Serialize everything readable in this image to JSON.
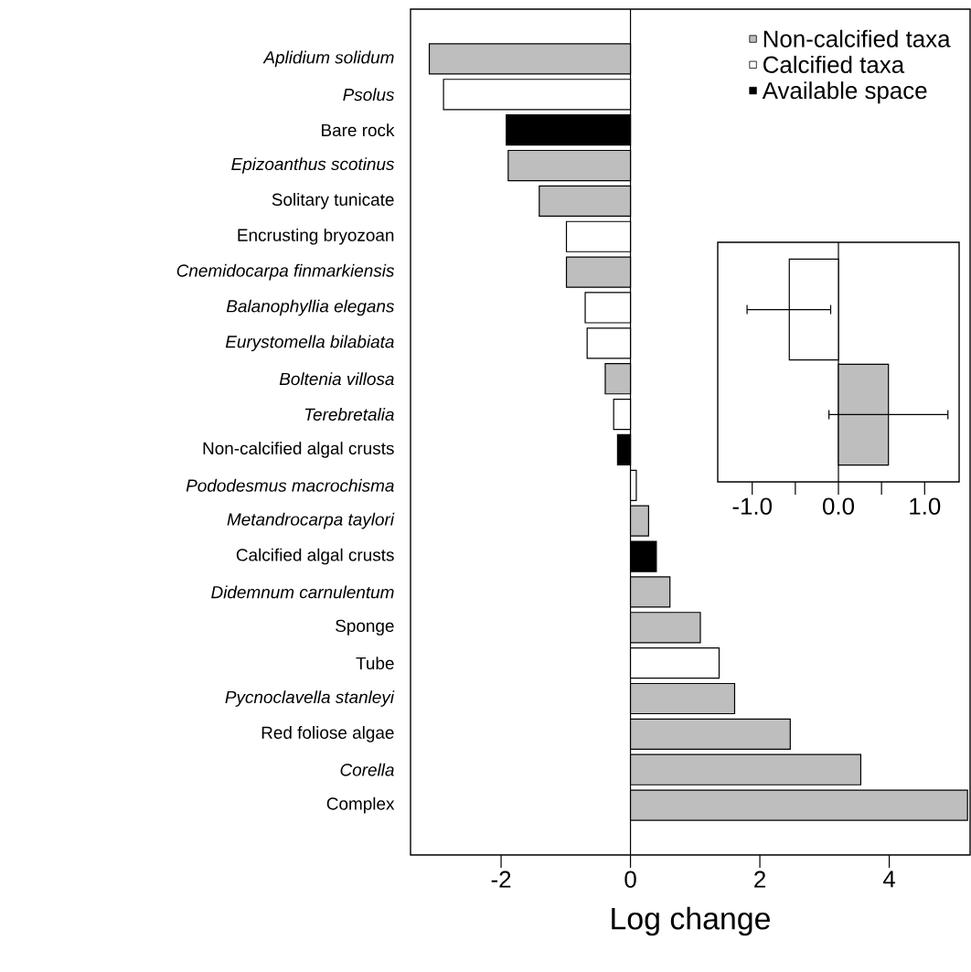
{
  "chart_data": [
    {
      "type": "bar",
      "orientation": "horizontal",
      "xlabel": "Log change",
      "categories": [
        "*Aplidium solidum*",
        "*Psolus*",
        "Bare rock",
        "*Epizoanthus scotinus*",
        "Solitary tunicate",
        "Encrusting bryozoan",
        "*Cnemidocarpa finmarkiensis*",
        "*Balanophyllia elegans*",
        "*Eurystomella bilabiata*",
        "*Boltenia villosa*",
        "*Terebretalia*",
        "Non-calcified algal crusts",
        "*Pododesmus macrochisma*",
        "*Metandrocarpa taylori*",
        "Calcified algal crusts",
        "*Didemnum carnulentum*",
        "Sponge",
        "Tube",
        "*Pycnoclavella stanleyi*",
        "Red foliose algae",
        "*Corella*",
        "Complex"
      ],
      "series": [
        {
          "name": "Non-calcified taxa",
          "color": "#bebebe",
          "values": [
            -3.11,
            null,
            null,
            -1.89,
            -1.41,
            null,
            -0.99,
            null,
            null,
            -0.39,
            null,
            null,
            null,
            0.28,
            null,
            0.61,
            1.08,
            null,
            1.61,
            2.47,
            3.56,
            5.21
          ]
        },
        {
          "name": "Calcified taxa",
          "color": "#ffffff",
          "values": [
            null,
            -2.89,
            null,
            null,
            null,
            -0.99,
            null,
            -0.7,
            -0.67,
            null,
            -0.26,
            null,
            0.09,
            null,
            null,
            null,
            null,
            1.37,
            null,
            null,
            null,
            null
          ]
        },
        {
          "name": "Available space",
          "color": "#000000",
          "values": [
            null,
            null,
            -1.92,
            null,
            null,
            null,
            null,
            null,
            null,
            null,
            null,
            -0.2,
            null,
            null,
            0.4,
            null,
            null,
            null,
            null,
            null,
            null,
            null
          ]
        }
      ],
      "xlim": [
        -3.4,
        5.25
      ],
      "xticks": [
        -2,
        0,
        2,
        4
      ],
      "legend": "top right",
      "ref_lines": [
        {
          "axis": "x",
          "value": 0
        }
      ]
    },
    {
      "type": "bar",
      "orientation": "horizontal",
      "categories": [
        null,
        null
      ],
      "values": [
        -0.57,
        0.58
      ],
      "colors": [
        "#ffffff",
        "#bebebe"
      ],
      "errors": [
        [
          -1.06,
          -0.09
        ],
        [
          -0.11,
          1.27
        ]
      ],
      "xlim": [
        -1.4,
        1.4
      ],
      "xticks": [
        {
          "value": -1,
          "label": "-1.0"
        },
        {
          "value": -0.5,
          "label": null
        },
        {
          "value": 0,
          "label": "0.0"
        },
        {
          "value": 0.5,
          "label": null
        },
        {
          "value": 1,
          "label": "1.0"
        }
      ],
      "tick_labels": "x",
      "ref_lines": [
        {
          "axis": "x",
          "value": 0
        }
      ]
    }
  ]
}
